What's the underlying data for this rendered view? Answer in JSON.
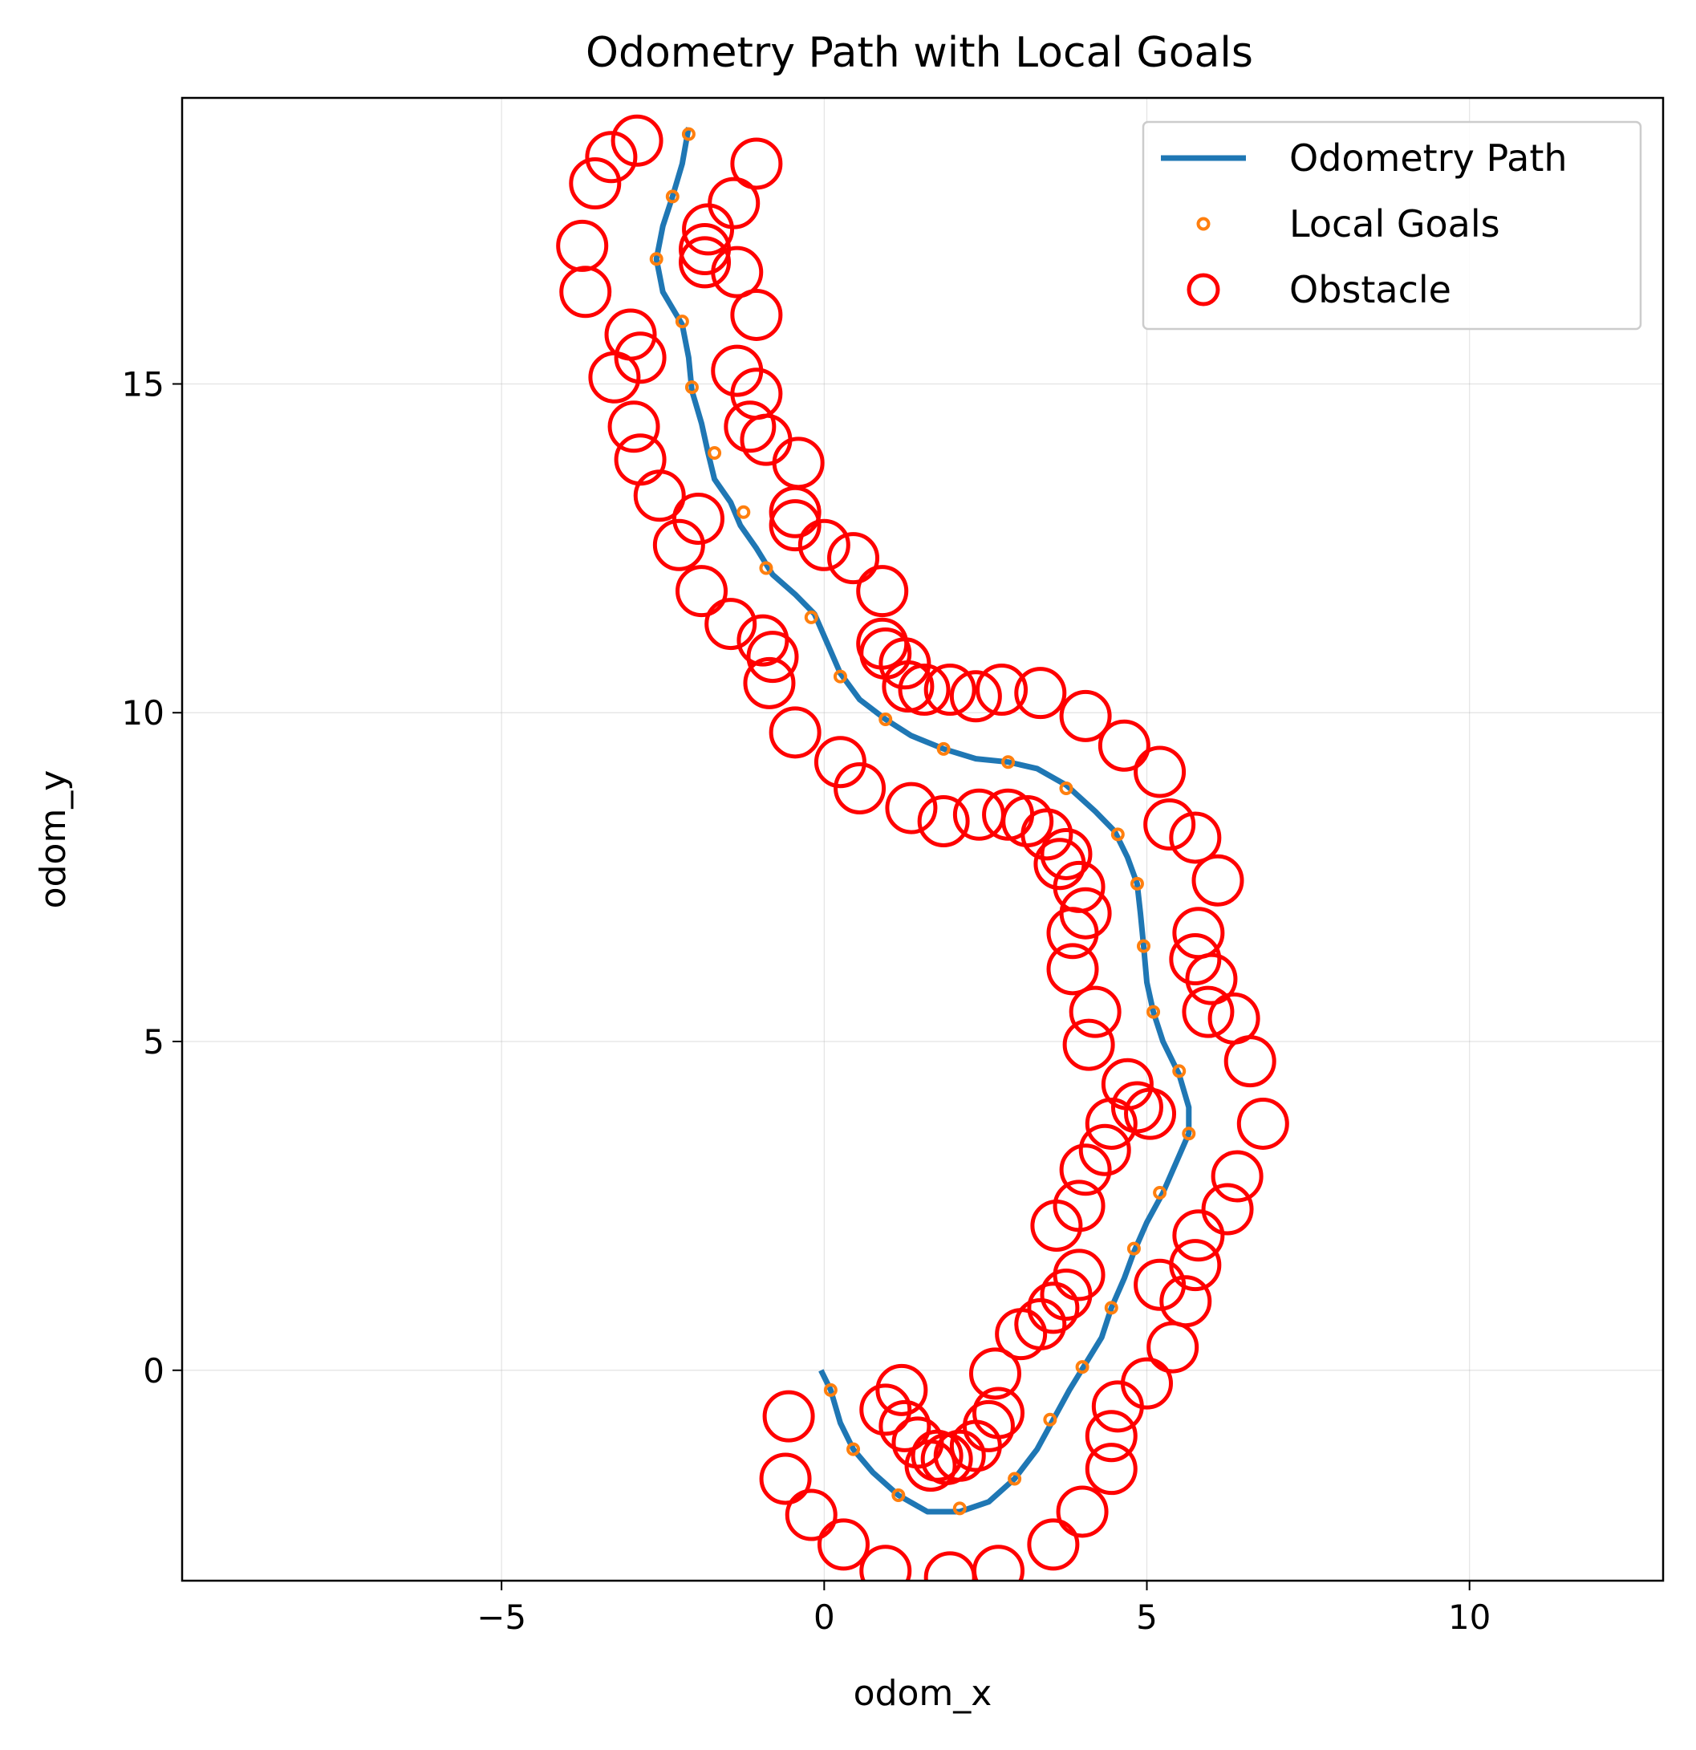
{
  "chart_data": {
    "type": "line",
    "title": "Odometry Path with Local Goals",
    "xlabel": "odom_x",
    "ylabel": "odom_y",
    "xlim": [
      -9.95,
      13.0
    ],
    "ylim": [
      -3.2,
      19.35
    ],
    "xticks": [
      -5,
      0,
      5,
      10
    ],
    "yticks": [
      0,
      5,
      10,
      15
    ],
    "xtick_labels": [
      "−5",
      "0",
      "5",
      "10"
    ],
    "ytick_labels": [
      "0",
      "5",
      "10",
      "15"
    ],
    "grid": true,
    "legend": {
      "placement": "top-right",
      "entries": [
        {
          "label": "Odometry Path",
          "kind": "line",
          "color": "#1f77b4"
        },
        {
          "label": "Local Goals",
          "kind": "point",
          "color": "#ff7f0e"
        },
        {
          "label": "Obstacle",
          "kind": "circle",
          "color": "#ff0000"
        }
      ]
    },
    "series": [
      {
        "name": "Odometry Path",
        "kind": "line",
        "color": "#1f77b4",
        "points": [
          [
            -0.05,
            0.0
          ],
          [
            0.1,
            -0.3
          ],
          [
            0.25,
            -0.8
          ],
          [
            0.45,
            -1.2
          ],
          [
            0.75,
            -1.55
          ],
          [
            1.15,
            -1.9
          ],
          [
            1.6,
            -2.15
          ],
          [
            2.1,
            -2.15
          ],
          [
            2.55,
            -2.0
          ],
          [
            2.95,
            -1.65
          ],
          [
            3.3,
            -1.2
          ],
          [
            3.55,
            -0.75
          ],
          [
            3.8,
            -0.3
          ],
          [
            4.05,
            0.1
          ],
          [
            4.3,
            0.5
          ],
          [
            4.45,
            0.95
          ],
          [
            4.65,
            1.4
          ],
          [
            4.8,
            1.8
          ],
          [
            5.0,
            2.25
          ],
          [
            5.25,
            2.7
          ],
          [
            5.45,
            3.15
          ],
          [
            5.65,
            3.6
          ],
          [
            5.65,
            4.0
          ],
          [
            5.5,
            4.5
          ],
          [
            5.25,
            5.0
          ],
          [
            5.1,
            5.45
          ],
          [
            5.0,
            5.9
          ],
          [
            4.95,
            6.45
          ],
          [
            4.9,
            6.95
          ],
          [
            4.85,
            7.4
          ],
          [
            4.7,
            7.8
          ],
          [
            4.5,
            8.2
          ],
          [
            4.2,
            8.5
          ],
          [
            3.75,
            8.9
          ],
          [
            3.3,
            9.15
          ],
          [
            2.85,
            9.25
          ],
          [
            2.35,
            9.3
          ],
          [
            1.85,
            9.45
          ],
          [
            1.35,
            9.65
          ],
          [
            0.95,
            9.9
          ],
          [
            0.55,
            10.2
          ],
          [
            0.25,
            10.6
          ],
          [
            0.05,
            11.05
          ],
          [
            -0.15,
            11.5
          ],
          [
            -0.45,
            11.8
          ],
          [
            -0.8,
            12.1
          ],
          [
            -1.05,
            12.5
          ],
          [
            -1.3,
            12.85
          ],
          [
            -1.45,
            13.2
          ],
          [
            -1.7,
            13.55
          ],
          [
            -1.8,
            13.95
          ],
          [
            -1.9,
            14.4
          ],
          [
            -2.05,
            14.9
          ],
          [
            -2.1,
            15.4
          ],
          [
            -2.2,
            15.9
          ],
          [
            -2.5,
            16.4
          ],
          [
            -2.6,
            16.9
          ],
          [
            -2.5,
            17.4
          ],
          [
            -2.35,
            17.85
          ],
          [
            -2.2,
            18.35
          ],
          [
            -2.1,
            18.9
          ]
        ]
      },
      {
        "name": "Local Goals",
        "kind": "scatter",
        "color": "#ff7f0e",
        "points": [
          [
            0.1,
            -0.3
          ],
          [
            0.45,
            -1.2
          ],
          [
            1.15,
            -1.9
          ],
          [
            2.1,
            -2.1
          ],
          [
            2.95,
            -1.65
          ],
          [
            3.5,
            -0.75
          ],
          [
            4.0,
            0.05
          ],
          [
            4.45,
            0.95
          ],
          [
            4.8,
            1.85
          ],
          [
            5.2,
            2.7
          ],
          [
            5.65,
            3.6
          ],
          [
            5.5,
            4.55
          ],
          [
            5.1,
            5.45
          ],
          [
            4.95,
            6.45
          ],
          [
            4.85,
            7.4
          ],
          [
            4.55,
            8.15
          ],
          [
            3.75,
            8.85
          ],
          [
            2.85,
            9.25
          ],
          [
            1.85,
            9.45
          ],
          [
            0.95,
            9.9
          ],
          [
            0.25,
            10.55
          ],
          [
            -0.2,
            11.45
          ],
          [
            -0.9,
            12.2
          ],
          [
            -1.25,
            13.05
          ],
          [
            -1.7,
            13.95
          ],
          [
            -2.05,
            14.95
          ],
          [
            -2.2,
            15.95
          ],
          [
            -2.6,
            16.9
          ],
          [
            -2.35,
            17.85
          ],
          [
            -2.1,
            18.8
          ]
        ]
      },
      {
        "name": "Obstacle",
        "kind": "scatter",
        "color": "#ff0000",
        "points": [
          [
            -2.9,
            18.7
          ],
          [
            -3.3,
            18.45
          ],
          [
            -3.55,
            18.05
          ],
          [
            -3.75,
            17.1
          ],
          [
            -3.7,
            16.4
          ],
          [
            -3.0,
            15.75
          ],
          [
            -2.85,
            15.4
          ],
          [
            -3.25,
            15.1
          ],
          [
            -2.95,
            14.35
          ],
          [
            -2.85,
            13.85
          ],
          [
            -2.55,
            13.3
          ],
          [
            -2.25,
            12.55
          ],
          [
            -1.95,
            12.95
          ],
          [
            -1.9,
            11.85
          ],
          [
            -1.45,
            11.35
          ],
          [
            -0.95,
            11.1
          ],
          [
            -0.8,
            10.85
          ],
          [
            -0.85,
            10.45
          ],
          [
            -0.45,
            9.7
          ],
          [
            0.25,
            9.25
          ],
          [
            0.55,
            8.85
          ],
          [
            1.35,
            8.55
          ],
          [
            1.85,
            8.35
          ],
          [
            2.4,
            8.45
          ],
          [
            2.85,
            8.45
          ],
          [
            3.15,
            8.35
          ],
          [
            3.45,
            8.15
          ],
          [
            3.75,
            7.85
          ],
          [
            3.65,
            7.7
          ],
          [
            3.95,
            7.35
          ],
          [
            4.05,
            6.95
          ],
          [
            3.85,
            6.65
          ],
          [
            3.85,
            6.1
          ],
          [
            4.2,
            5.45
          ],
          [
            4.1,
            4.95
          ],
          [
            4.7,
            4.35
          ],
          [
            4.85,
            4.0
          ],
          [
            5.05,
            3.9
          ],
          [
            4.45,
            3.75
          ],
          [
            4.35,
            3.35
          ],
          [
            4.05,
            3.05
          ],
          [
            3.95,
            2.5
          ],
          [
            3.6,
            2.2
          ],
          [
            3.95,
            1.45
          ],
          [
            3.75,
            1.15
          ],
          [
            3.55,
            0.95
          ],
          [
            3.35,
            0.7
          ],
          [
            3.05,
            0.55
          ],
          [
            2.65,
            -0.05
          ],
          [
            2.7,
            -0.65
          ],
          [
            2.55,
            -0.85
          ],
          [
            2.35,
            -1.15
          ],
          [
            2.1,
            -1.3
          ],
          [
            1.9,
            -1.35
          ],
          [
            1.75,
            -1.3
          ],
          [
            1.65,
            -1.45
          ],
          [
            1.45,
            -1.1
          ],
          [
            1.25,
            -0.85
          ],
          [
            1.2,
            -0.3
          ],
          [
            0.95,
            -0.6
          ],
          [
            -0.55,
            -0.7
          ],
          [
            -0.6,
            -1.65
          ],
          [
            -0.2,
            -2.2
          ],
          [
            0.3,
            -2.65
          ],
          [
            0.95,
            -3.05
          ],
          [
            1.95,
            -3.15
          ],
          [
            2.7,
            -3.05
          ],
          [
            3.55,
            -2.65
          ],
          [
            4.0,
            -2.15
          ],
          [
            4.45,
            -1.5
          ],
          [
            4.45,
            -1.0
          ],
          [
            4.55,
            -0.55
          ],
          [
            5.0,
            -0.2
          ],
          [
            5.4,
            0.35
          ],
          [
            5.6,
            1.05
          ],
          [
            5.2,
            1.3
          ],
          [
            5.75,
            1.6
          ],
          [
            5.8,
            2.05
          ],
          [
            6.25,
            2.45
          ],
          [
            6.4,
            2.95
          ],
          [
            6.8,
            3.75
          ],
          [
            6.6,
            4.7
          ],
          [
            6.35,
            5.35
          ],
          [
            6.0,
            5.95
          ],
          [
            5.95,
            5.45
          ],
          [
            5.75,
            6.25
          ],
          [
            5.8,
            6.65
          ],
          [
            6.1,
            7.45
          ],
          [
            5.75,
            8.1
          ],
          [
            5.35,
            8.3
          ],
          [
            5.2,
            9.1
          ],
          [
            4.65,
            9.5
          ],
          [
            4.05,
            9.95
          ],
          [
            3.35,
            10.3
          ],
          [
            2.75,
            10.35
          ],
          [
            2.35,
            10.25
          ],
          [
            1.95,
            10.35
          ],
          [
            1.55,
            10.35
          ],
          [
            1.3,
            10.4
          ],
          [
            1.25,
            10.75
          ],
          [
            0.95,
            10.9
          ],
          [
            0.9,
            11.05
          ],
          [
            0.9,
            11.85
          ],
          [
            0.45,
            12.35
          ],
          [
            0.0,
            12.55
          ],
          [
            -0.45,
            12.85
          ],
          [
            -0.45,
            13.05
          ],
          [
            -0.4,
            13.8
          ],
          [
            -0.9,
            14.15
          ],
          [
            -1.15,
            14.35
          ],
          [
            -1.05,
            14.85
          ],
          [
            -1.35,
            15.2
          ],
          [
            -1.05,
            16.05
          ],
          [
            -1.35,
            16.7
          ],
          [
            -1.85,
            16.85
          ],
          [
            -1.85,
            17.05
          ],
          [
            -1.8,
            17.35
          ],
          [
            -1.4,
            17.75
          ],
          [
            -1.05,
            18.35
          ]
        ]
      }
    ]
  }
}
